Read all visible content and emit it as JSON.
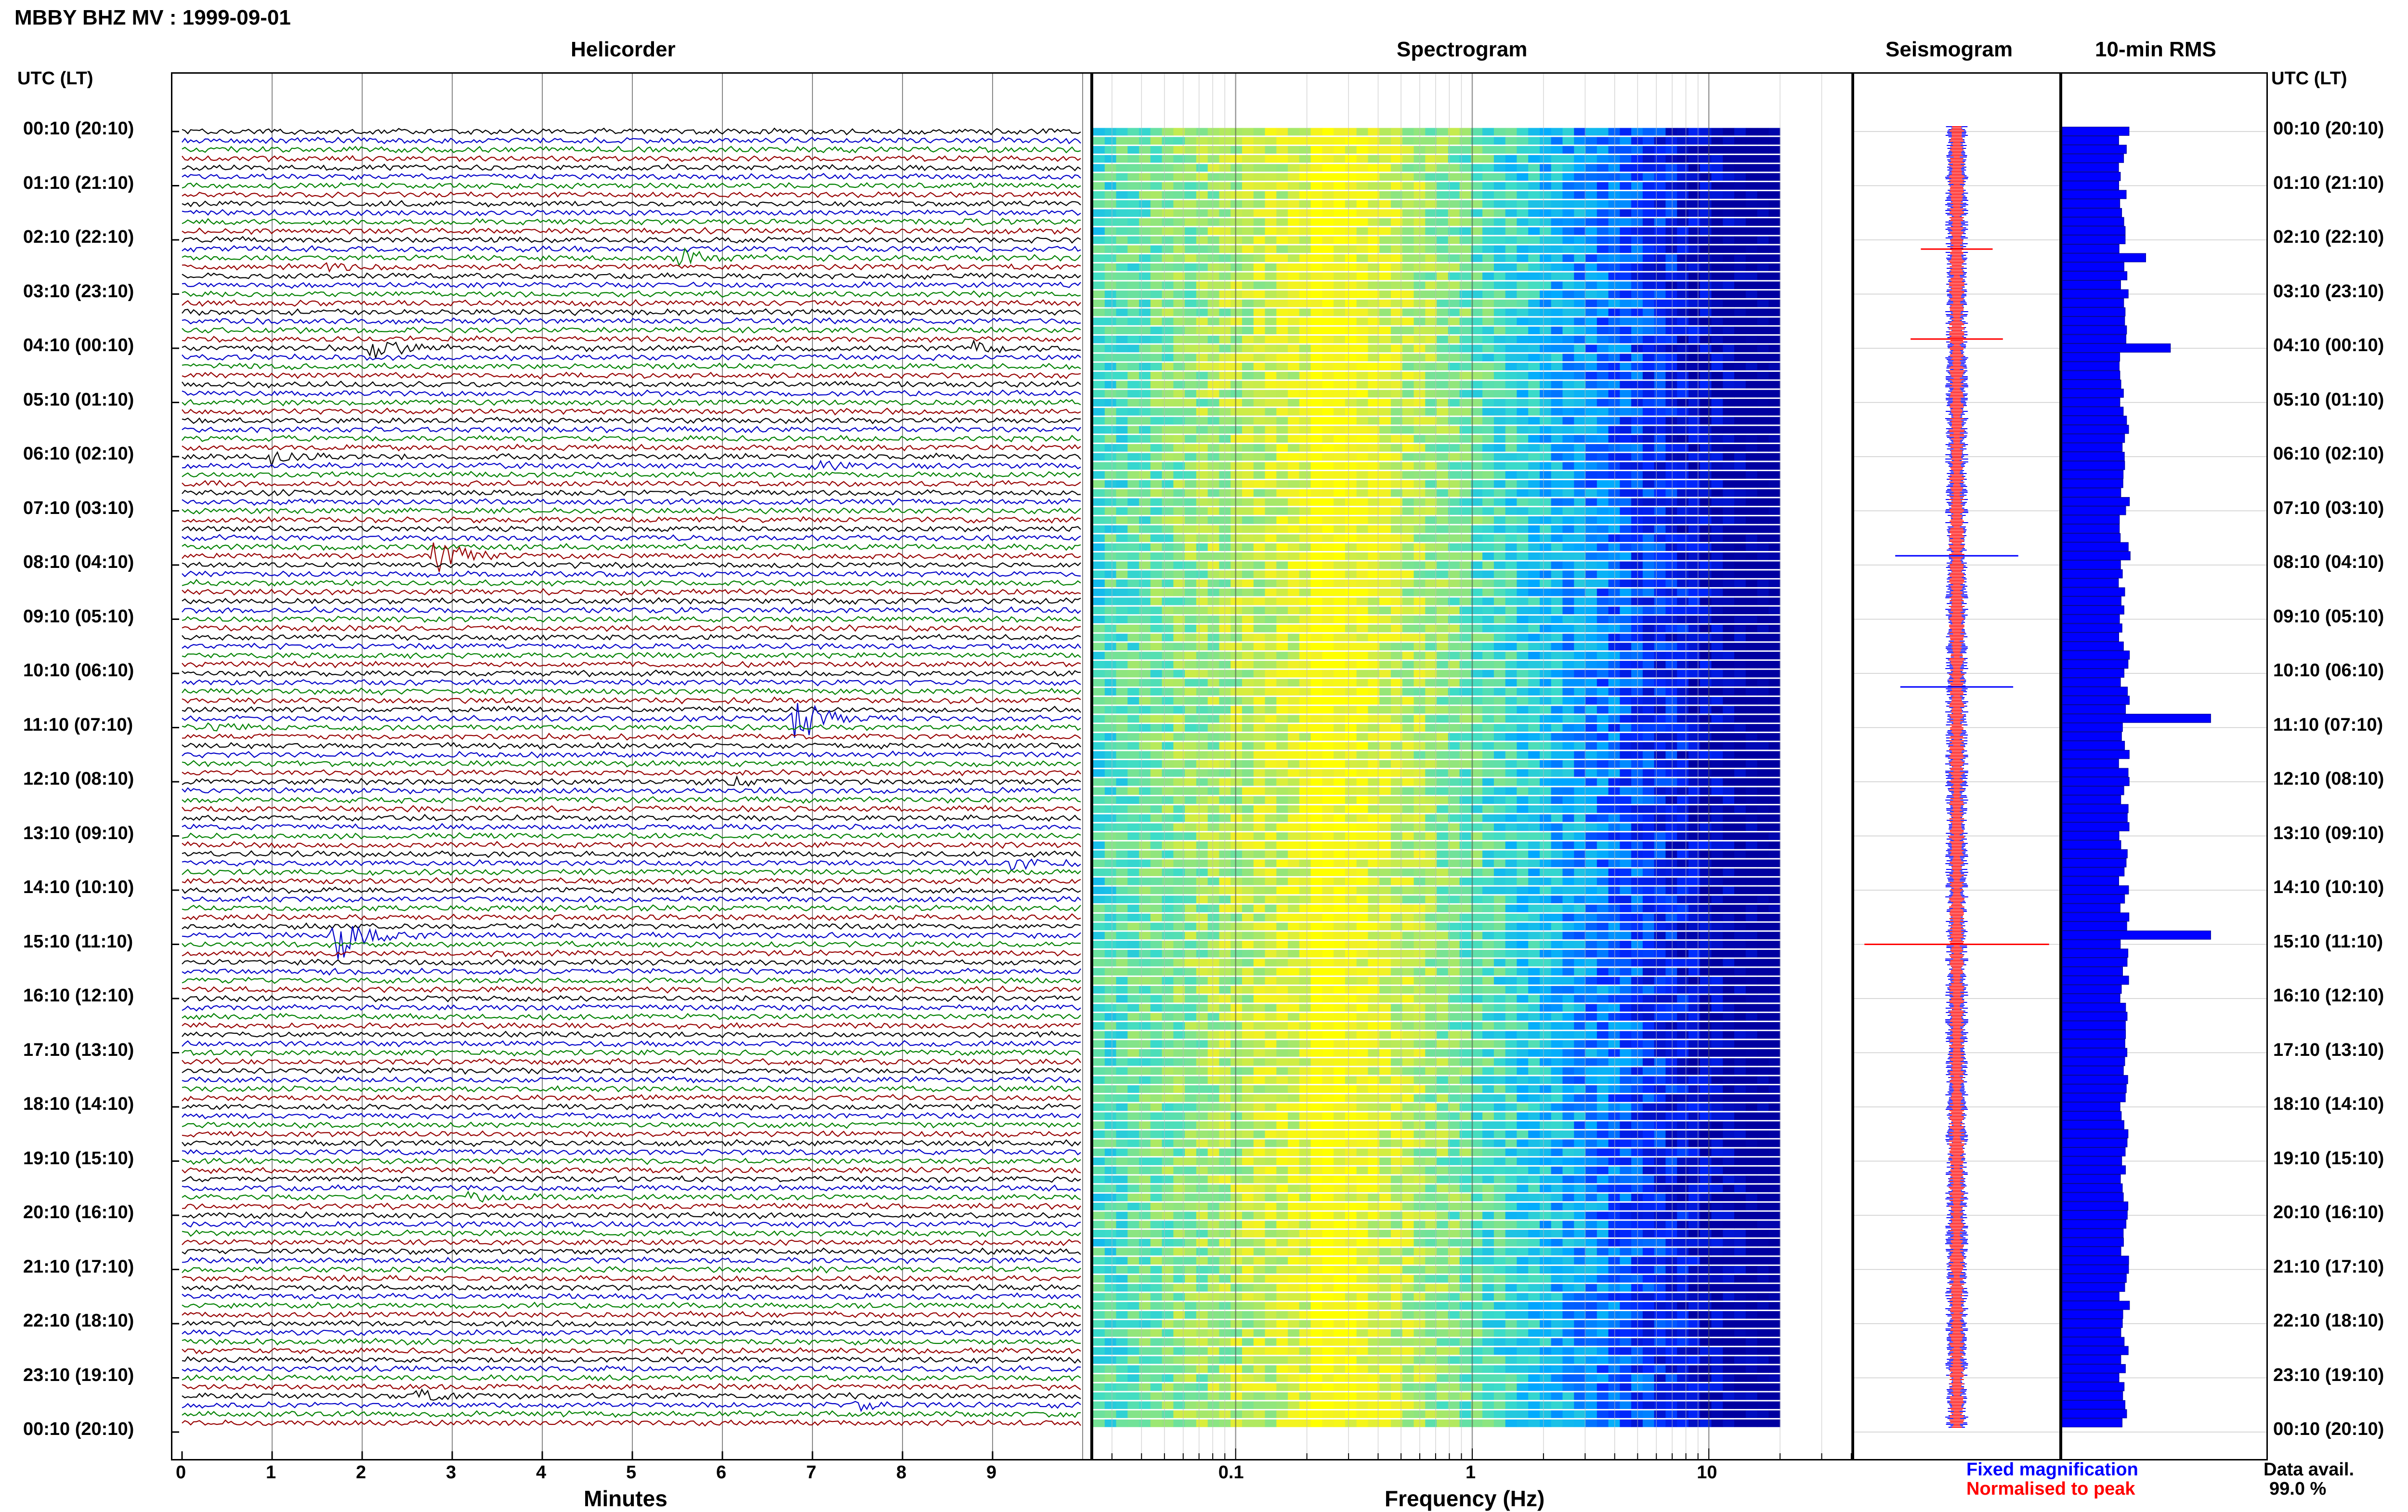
{
  "header": {
    "station_title": "MBBY BHZ MV : 1999-09-01",
    "left_axis_title": "UTC (LT)",
    "right_axis_title": "UTC (LT)"
  },
  "panels": {
    "helicorder": {
      "title": "Helicorder",
      "xlabel": "Minutes"
    },
    "spectrogram": {
      "title": "Spectrogram",
      "xlabel": "Frequency (Hz)"
    },
    "seismogram": {
      "title": "Seismogram"
    },
    "rms": {
      "title": "10-min RMS"
    }
  },
  "legend": {
    "fixed": "Fixed magnification",
    "normalised": "Normalised to peak",
    "fixed_color": "#0000ff",
    "normalised_color": "#ff0000"
  },
  "data_availability": {
    "label": "Data avail.",
    "value": "99.0 %"
  },
  "chart_data": [
    {
      "type": "line",
      "name": "helicorder",
      "x_ticks": [
        "0",
        "1",
        "2",
        "3",
        "4",
        "5",
        "6",
        "7",
        "8",
        "9"
      ],
      "xlim": [
        0,
        10
      ],
      "y_ticks": [
        "00:10 (20:10)",
        "01:10 (21:10)",
        "02:10 (22:10)",
        "03:10 (23:10)",
        "04:10 (00:10)",
        "05:10 (01:10)",
        "06:10 (02:10)",
        "07:10 (03:10)",
        "08:10 (04:10)",
        "09:10 (05:10)",
        "10:10 (06:10)",
        "11:10 (07:10)",
        "12:10 (08:10)",
        "13:10 (09:10)",
        "14:10 (10:10)",
        "15:10 (11:10)",
        "16:10 (12:10)",
        "17:10 (13:10)",
        "18:10 (14:10)",
        "19:10 (15:10)",
        "20:10 (16:10)",
        "21:10 (17:10)",
        "22:10 (18:10)",
        "23:10 (19:10)",
        "00:10 (20:10)"
      ],
      "trace_colors": [
        "#000000",
        "#0000c8",
        "#008000",
        "#960000"
      ],
      "traces_count": 144,
      "events": [
        {
          "trace": 10,
          "minute": 8.7,
          "amp": 0.5,
          "color": "#008000"
        },
        {
          "trace": 14,
          "minute": 5.5,
          "amp": 1.5,
          "color": "#960000"
        },
        {
          "trace": 15,
          "minute": 1.6,
          "amp": 0.6,
          "color": "#0000c8"
        },
        {
          "trace": 24,
          "minute": 2.1,
          "amp": 2.0,
          "color": "#0000c8"
        },
        {
          "trace": 24,
          "minute": 8.8,
          "amp": 0.8,
          "color": "#0000c8"
        },
        {
          "trace": 36,
          "minute": 1.0,
          "amp": 1.2,
          "color": "#008000"
        },
        {
          "trace": 37,
          "minute": 7.0,
          "amp": 0.6,
          "color": "#000000"
        },
        {
          "trace": 47,
          "minute": 2.8,
          "amp": 3.0,
          "color": "#0000c8"
        },
        {
          "trace": 65,
          "minute": 6.8,
          "amp": 4.0,
          "color": "#0000c8"
        },
        {
          "trace": 66,
          "minute": 0.3,
          "amp": 0.5,
          "color": "#008000"
        },
        {
          "trace": 72,
          "minute": 6.1,
          "amp": 0.7,
          "color": "#000000"
        },
        {
          "trace": 81,
          "minute": 9.2,
          "amp": 0.9,
          "color": "#960000"
        },
        {
          "trace": 89,
          "minute": 1.7,
          "amp": 5.0,
          "color": "#008000"
        },
        {
          "trace": 118,
          "minute": 3.2,
          "amp": 0.9,
          "color": "#960000"
        },
        {
          "trace": 140,
          "minute": 2.6,
          "amp": 1.0,
          "color": "#0000c8"
        },
        {
          "trace": 141,
          "minute": 7.5,
          "amp": 0.6,
          "color": "#000000"
        }
      ]
    },
    {
      "type": "heatmap",
      "name": "spectrogram",
      "x_scale": "log",
      "xlim": [
        0.025,
        40
      ],
      "x_ticks": [
        {
          "label": "0.1",
          "value": 0.1
        },
        {
          "label": "1",
          "value": 1
        },
        {
          "label": "10",
          "value": 10
        }
      ],
      "max_frequency_shown": 20,
      "peak_frequency": 0.2,
      "rows": 144
    },
    {
      "type": "line",
      "name": "seismogram",
      "spikes": [
        {
          "hour": 2.17,
          "width": 0.35,
          "color": "#ff0000"
        },
        {
          "hour": 3.83,
          "width": 0.45,
          "color": "#ff0000"
        },
        {
          "hour": 7.83,
          "width": 0.6,
          "color": "#0000ff"
        },
        {
          "hour": 10.25,
          "width": 0.55,
          "color": "#0000ff"
        },
        {
          "hour": 15.0,
          "width": 0.9,
          "color": "#ff0000"
        }
      ]
    },
    {
      "type": "bar",
      "name": "rms",
      "bars_count": 144,
      "base_value": 1.0,
      "peaks": [
        {
          "index": 14,
          "value": 1.35
        },
        {
          "index": 24,
          "value": 1.75
        },
        {
          "index": 47,
          "value": 1.1
        },
        {
          "index": 65,
          "value": 2.4
        },
        {
          "index": 89,
          "value": 2.4
        }
      ],
      "xlim": [
        0,
        3.3
      ]
    }
  ]
}
